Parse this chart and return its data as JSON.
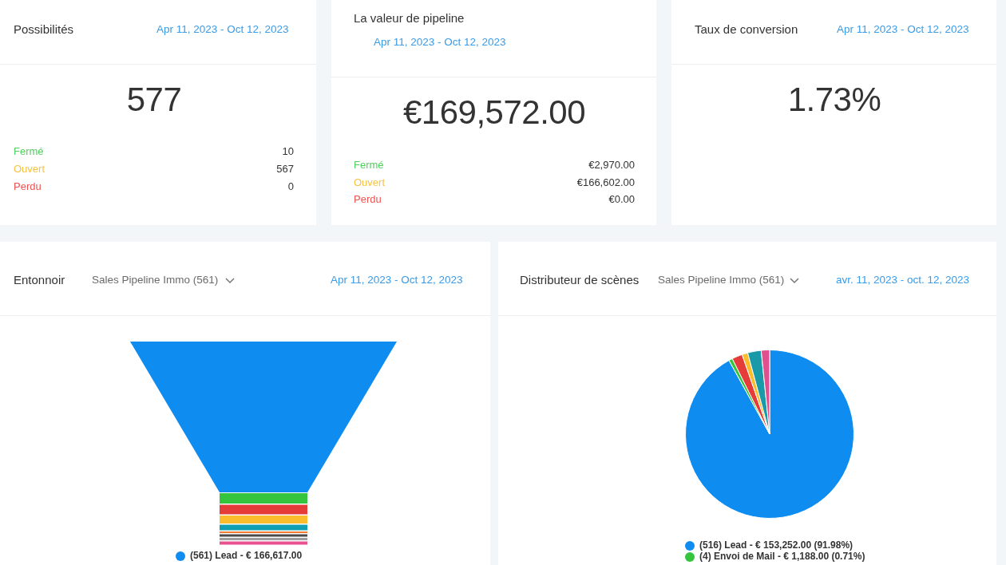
{
  "chart_data": [
    {
      "type": "other",
      "title": "Possibilités",
      "subtitle": "Apr 11, 2023 - Oct 12, 2023",
      "annotations": [
        "577"
      ],
      "categories": [
        "Fermé",
        "Ouvert",
        "Perdu"
      ],
      "values": [
        10,
        567,
        0
      ],
      "colors": [
        "#4fd05c",
        "#f6c343",
        "#ef5350"
      ],
      "data_labels": true
    },
    {
      "type": "other",
      "title": "La valeur de pipeline",
      "subtitle": "Apr 11, 2023 - Oct 12, 2023",
      "annotations": [
        "€169,572.00"
      ],
      "categories": [
        "Fermé",
        "Ouvert",
        "Perdu"
      ],
      "values": [
        2970,
        166602,
        0
      ],
      "value_labels": [
        "€2,970.00",
        "€166,602.00",
        "€0.00"
      ],
      "colors": [
        "#4fd05c",
        "#f6c343",
        "#ef5350"
      ]
    },
    {
      "type": "other",
      "title": "Taux de conversion",
      "subtitle": "Apr 11, 2023 - Oct 12, 2023",
      "annotations": [
        "1.73%"
      ]
    },
    {
      "type": "other",
      "title": "Entonnoir",
      "subtitle": "Sales Pipeline Immo (561)",
      "annotations": [
        "Apr 11, 2023 - Oct 12, 2023"
      ],
      "categories": [
        "(561) Lead - € 166,617.00",
        null,
        null,
        null,
        null,
        null,
        null,
        null,
        null
      ],
      "colors": [
        "#0e8cf0",
        "#34c43e",
        "#e53c3a",
        "#fbbd2c",
        "#119fb4",
        "#f07a2e",
        "#4a4a4a",
        "#9e9e9e",
        "#e8508f"
      ]
    },
    {
      "type": "pie",
      "title": "Distributeur de scènes",
      "subtitle": "Sales Pipeline Immo (561)",
      "annotations": [
        "avr. 11, 2023 - oct. 12, 2023"
      ],
      "categories": [
        "(516) Lead - € 153,252.00 (91.98%)",
        "(4) Envoi de Mail - € 1,188.00 (0.71%)",
        null,
        null,
        null,
        null
      ],
      "values": [
        91.98,
        0.71,
        2.0,
        1.1,
        2.6,
        1.61
      ],
      "colors": [
        "#0e8cf0",
        "#34c43e",
        "#e53c3a",
        "#fbbd2c",
        "#1a9aa8",
        "#e0508f"
      ],
      "legend": "bottom"
    }
  ]
}
